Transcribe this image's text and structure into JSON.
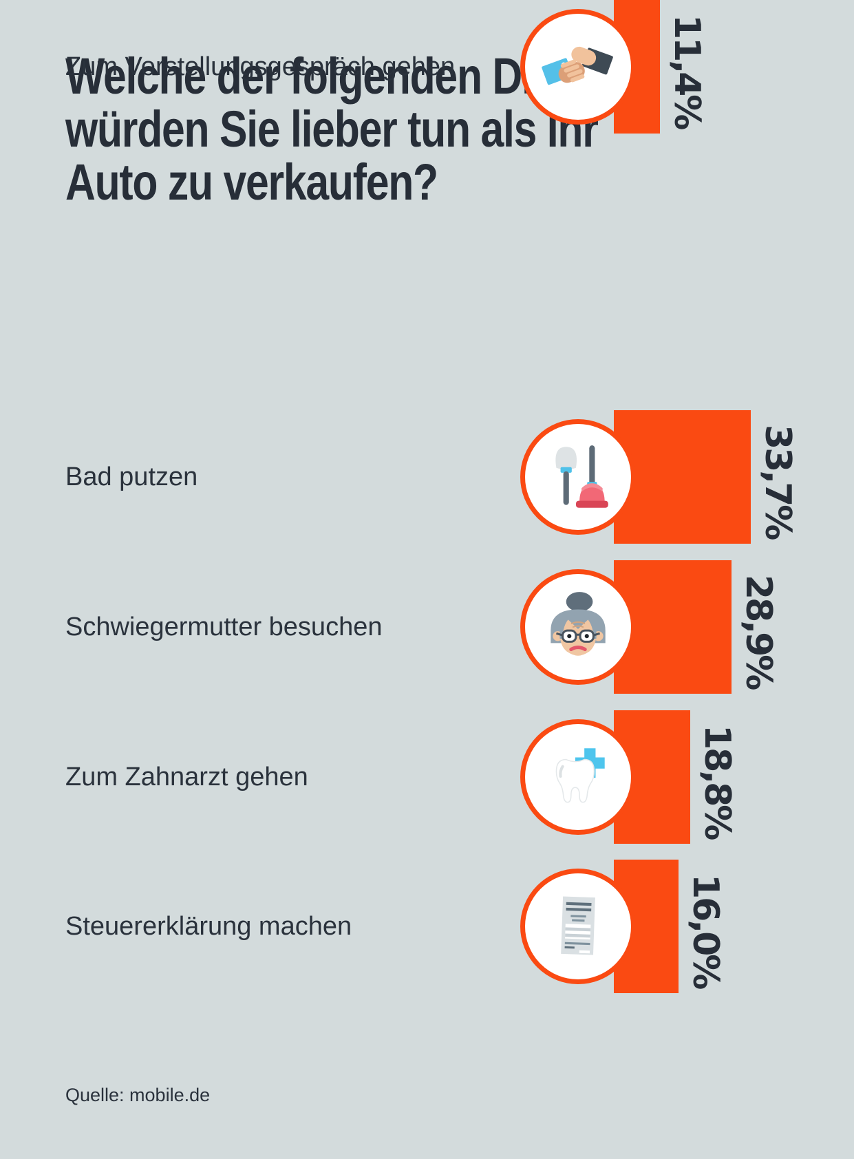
{
  "title_lines": [
    "Welche der folgenden Dinge",
    "würden Sie lieber tun als Ihr",
    "Auto zu verkaufen?"
  ],
  "source": "Quelle: mobile.de",
  "colors": {
    "background": "#D3DBDC",
    "bar": "#FA4A12",
    "text_dark": "#272E38",
    "text_label": "#2A323C",
    "icon_blue": "#4FC1E9"
  },
  "chart_data": {
    "type": "bar",
    "orientation": "horizontal",
    "title": "Welche der folgenden Dinge würden Sie lieber tun als Ihr Auto zu verkaufen?",
    "unit": "%",
    "source": "Quelle: mobile.de",
    "xlabel": "",
    "ylabel": "",
    "xlim": [
      0,
      35
    ],
    "grid": false,
    "legend": false,
    "categories": [
      "Bad putzen",
      "Schwiegermutter besuchen",
      "Zum Zahnarzt gehen",
      "Steuererklärung machen",
      "Zum Vorstellungsgespräch gehen"
    ],
    "values": [
      33.7,
      28.9,
      18.8,
      16.0,
      11.4
    ],
    "rows": [
      {
        "label": "Bad putzen",
        "value": 33.7,
        "value_label": "33,7%",
        "icon": "toilet-brush-plunger-icon"
      },
      {
        "label": "Schwiegermutter besuchen",
        "value": 28.9,
        "value_label": "28,9%",
        "icon": "mother-in-law-icon"
      },
      {
        "label": "Zum Zahnarzt gehen",
        "value": 18.8,
        "value_label": "18,8%",
        "icon": "tooth-dentist-icon"
      },
      {
        "label": "Steuererklärung machen",
        "value": 16.0,
        "value_label": "16,0%",
        "icon": "tax-form-icon"
      },
      {
        "label": "Zum Vorstellungsgespräch gehen",
        "value": 11.4,
        "value_label": "11,4%",
        "icon": "handshake-icon"
      }
    ]
  }
}
